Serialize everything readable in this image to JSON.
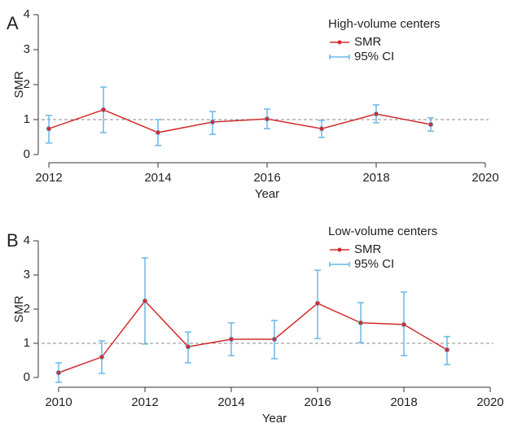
{
  "chart_data": [
    {
      "type": "line",
      "panel": "A",
      "legend_title": "High-volume centers",
      "xlabel": "Year",
      "ylabel": "SMR",
      "x": [
        2012,
        2013,
        2014,
        2015,
        2016,
        2017,
        2018,
        2019
      ],
      "series": [
        {
          "name": "SMR",
          "color": "#d42a2a",
          "values": [
            0.74,
            1.28,
            0.63,
            0.93,
            1.02,
            0.74,
            1.16,
            0.86
          ]
        }
      ],
      "ci": {
        "name": "95% CI",
        "color": "#6cb6e8",
        "low": [
          0.33,
          0.63,
          0.26,
          0.58,
          0.74,
          0.49,
          0.91,
          0.67
        ],
        "high": [
          1.12,
          1.93,
          1.0,
          1.23,
          1.3,
          0.98,
          1.42,
          1.05
        ]
      },
      "reference_line": 1,
      "xlim": [
        2012,
        2020
      ],
      "xticks": [
        2012,
        2014,
        2016,
        2018,
        2020
      ],
      "ylim": [
        -0.25,
        4
      ],
      "yticks": [
        0,
        1,
        2,
        3,
        4
      ]
    },
    {
      "type": "line",
      "panel": "B",
      "legend_title": "Low-volume centers",
      "xlabel": "Year",
      "ylabel": "SMR",
      "x": [
        2010,
        2011,
        2012,
        2013,
        2014,
        2015,
        2016,
        2017,
        2018,
        2019
      ],
      "series": [
        {
          "name": "SMR",
          "color": "#d42a2a",
          "values": [
            0.14,
            0.6,
            2.24,
            0.9,
            1.12,
            1.12,
            2.17,
            1.6,
            1.55,
            0.81
          ]
        }
      ],
      "ci": {
        "name": "95% CI",
        "color": "#6cb6e8",
        "low": [
          -0.14,
          0.12,
          0.98,
          0.43,
          0.64,
          0.55,
          1.14,
          1.02,
          0.64,
          0.38
        ],
        "high": [
          0.43,
          1.07,
          3.5,
          1.33,
          1.6,
          1.67,
          3.14,
          2.19,
          2.5,
          1.2
        ]
      },
      "reference_line": 1,
      "xlim": [
        2010,
        2020
      ],
      "xticks": [
        2010,
        2012,
        2014,
        2016,
        2018,
        2020
      ],
      "ylim": [
        -0.3,
        4
      ],
      "yticks": [
        0,
        1,
        2,
        3,
        4
      ]
    }
  ]
}
